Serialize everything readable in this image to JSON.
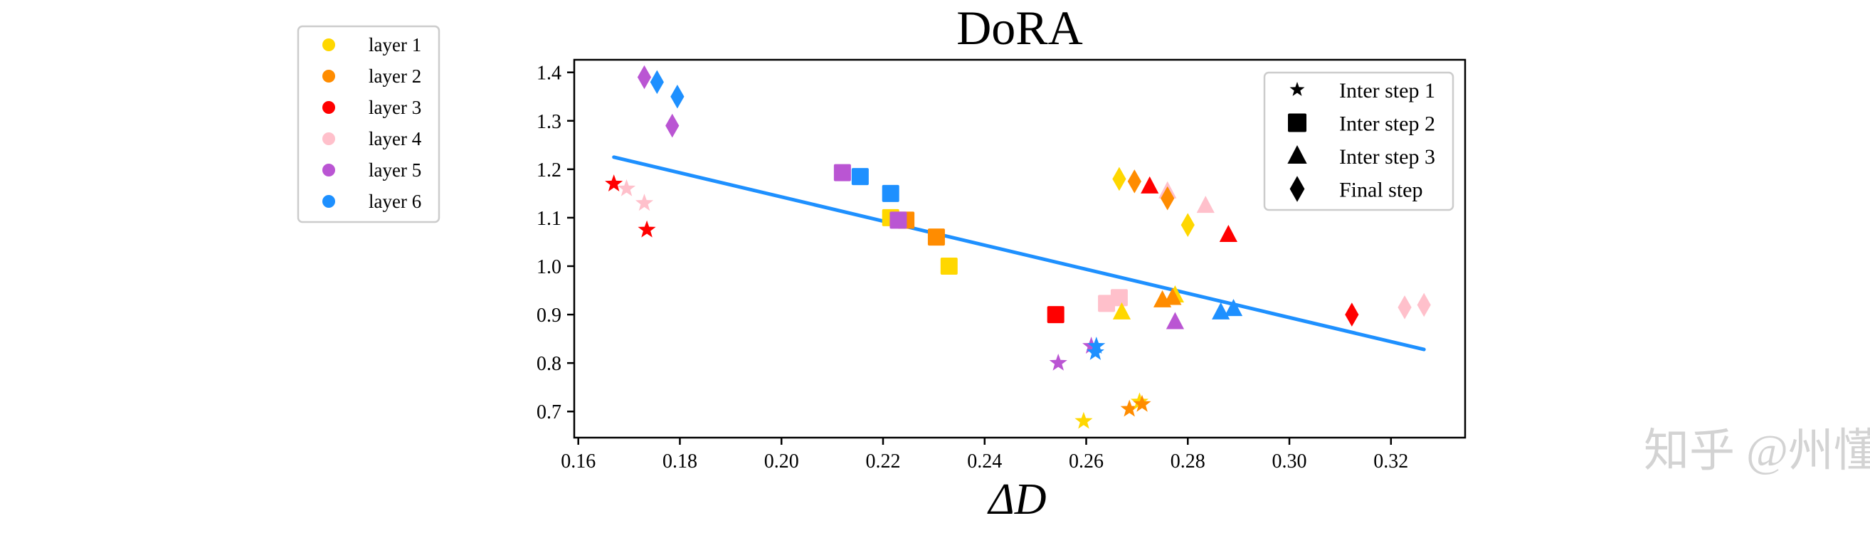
{
  "chart_data": {
    "type": "scatter",
    "title": "DoRA",
    "xlabel": "ΔD",
    "ylabel": "",
    "xlim": [
      0.1592,
      0.3346
    ],
    "ylim": [
      0.646,
      1.426
    ],
    "xticks": [
      "0.16",
      "0.18",
      "0.20",
      "0.22",
      "0.24",
      "0.26",
      "0.28",
      "0.30",
      "0.32"
    ],
    "yticks": [
      "0.7",
      "0.8",
      "0.9",
      "1.0",
      "1.1",
      "1.2",
      "1.3",
      "1.4"
    ],
    "grid": false,
    "layers": [
      {
        "name": "layer 1",
        "color": "#FFD700"
      },
      {
        "name": "layer 2",
        "color": "#FF8C00"
      },
      {
        "name": "layer 3",
        "color": "#FF0000"
      },
      {
        "name": "layer 4",
        "color": "#FFC0CB"
      },
      {
        "name": "layer 5",
        "color": "#BA55D3"
      },
      {
        "name": "layer 6",
        "color": "#1E90FF"
      }
    ],
    "steps": [
      {
        "name": "Inter step 1",
        "marker": "star"
      },
      {
        "name": "Inter step 2",
        "marker": "square"
      },
      {
        "name": "Inter step 3",
        "marker": "triangle"
      },
      {
        "name": "Final step",
        "marker": "diamond"
      }
    ],
    "layer_legend_placement": "outside-left",
    "step_legend_placement": "top-right",
    "points": [
      {
        "step": 0,
        "layer": 2,
        "x": 0.167,
        "y": 1.17
      },
      {
        "step": 0,
        "layer": 3,
        "x": 0.1695,
        "y": 1.16
      },
      {
        "step": 0,
        "layer": 3,
        "x": 0.173,
        "y": 1.13
      },
      {
        "step": 0,
        "layer": 2,
        "x": 0.1735,
        "y": 1.075
      },
      {
        "step": 0,
        "layer": 4,
        "x": 0.2545,
        "y": 0.8
      },
      {
        "step": 0,
        "layer": 4,
        "x": 0.261,
        "y": 0.835
      },
      {
        "step": 0,
        "layer": 5,
        "x": 0.262,
        "y": 0.835
      },
      {
        "step": 0,
        "layer": 5,
        "x": 0.2618,
        "y": 0.822
      },
      {
        "step": 0,
        "layer": 0,
        "x": 0.2595,
        "y": 0.68
      },
      {
        "step": 0,
        "layer": 1,
        "x": 0.2685,
        "y": 0.705
      },
      {
        "step": 0,
        "layer": 0,
        "x": 0.2705,
        "y": 0.72
      },
      {
        "step": 0,
        "layer": 1,
        "x": 0.271,
        "y": 0.715
      },
      {
        "step": 1,
        "layer": 4,
        "x": 0.212,
        "y": 1.193
      },
      {
        "step": 1,
        "layer": 5,
        "x": 0.2155,
        "y": 1.185
      },
      {
        "step": 1,
        "layer": 5,
        "x": 0.2215,
        "y": 1.15
      },
      {
        "step": 1,
        "layer": 0,
        "x": 0.2215,
        "y": 1.1
      },
      {
        "step": 1,
        "layer": 1,
        "x": 0.2245,
        "y": 1.095
      },
      {
        "step": 1,
        "layer": 4,
        "x": 0.223,
        "y": 1.095
      },
      {
        "step": 1,
        "layer": 1,
        "x": 0.2305,
        "y": 1.06
      },
      {
        "step": 1,
        "layer": 0,
        "x": 0.233,
        "y": 1.0
      },
      {
        "step": 1,
        "layer": 2,
        "x": 0.254,
        "y": 0.9
      },
      {
        "step": 1,
        "layer": 3,
        "x": 0.264,
        "y": 0.923
      },
      {
        "step": 1,
        "layer": 3,
        "x": 0.2665,
        "y": 0.935
      },
      {
        "step": 2,
        "layer": 2,
        "x": 0.2725,
        "y": 1.165
      },
      {
        "step": 2,
        "layer": 3,
        "x": 0.276,
        "y": 1.155
      },
      {
        "step": 2,
        "layer": 3,
        "x": 0.2835,
        "y": 1.125
      },
      {
        "step": 2,
        "layer": 2,
        "x": 0.288,
        "y": 1.065
      },
      {
        "step": 2,
        "layer": 0,
        "x": 0.2775,
        "y": 0.94
      },
      {
        "step": 2,
        "layer": 1,
        "x": 0.275,
        "y": 0.93
      },
      {
        "step": 2,
        "layer": 1,
        "x": 0.277,
        "y": 0.935
      },
      {
        "step": 2,
        "layer": 0,
        "x": 0.267,
        "y": 0.905
      },
      {
        "step": 2,
        "layer": 4,
        "x": 0.2775,
        "y": 0.885
      },
      {
        "step": 2,
        "layer": 5,
        "x": 0.2865,
        "y": 0.905
      },
      {
        "step": 2,
        "layer": 5,
        "x": 0.289,
        "y": 0.912
      },
      {
        "step": 3,
        "layer": 4,
        "x": 0.173,
        "y": 1.39
      },
      {
        "step": 3,
        "layer": 5,
        "x": 0.1755,
        "y": 1.38
      },
      {
        "step": 3,
        "layer": 5,
        "x": 0.1795,
        "y": 1.35
      },
      {
        "step": 3,
        "layer": 4,
        "x": 0.1785,
        "y": 1.29
      },
      {
        "step": 3,
        "layer": 0,
        "x": 0.2665,
        "y": 1.18
      },
      {
        "step": 3,
        "layer": 1,
        "x": 0.2695,
        "y": 1.175
      },
      {
        "step": 3,
        "layer": 1,
        "x": 0.276,
        "y": 1.14
      },
      {
        "step": 3,
        "layer": 0,
        "x": 0.28,
        "y": 1.085
      },
      {
        "step": 3,
        "layer": 2,
        "x": 0.3123,
        "y": 0.9
      },
      {
        "step": 3,
        "layer": 3,
        "x": 0.3227,
        "y": 0.915
      },
      {
        "step": 3,
        "layer": 3,
        "x": 0.3265,
        "y": 0.92
      }
    ],
    "fit_line": {
      "color": "#1E90FF",
      "x": [
        0.167,
        0.3265
      ],
      "y": [
        1.225,
        0.828
      ]
    }
  },
  "watermark": "知乎 @州懂"
}
